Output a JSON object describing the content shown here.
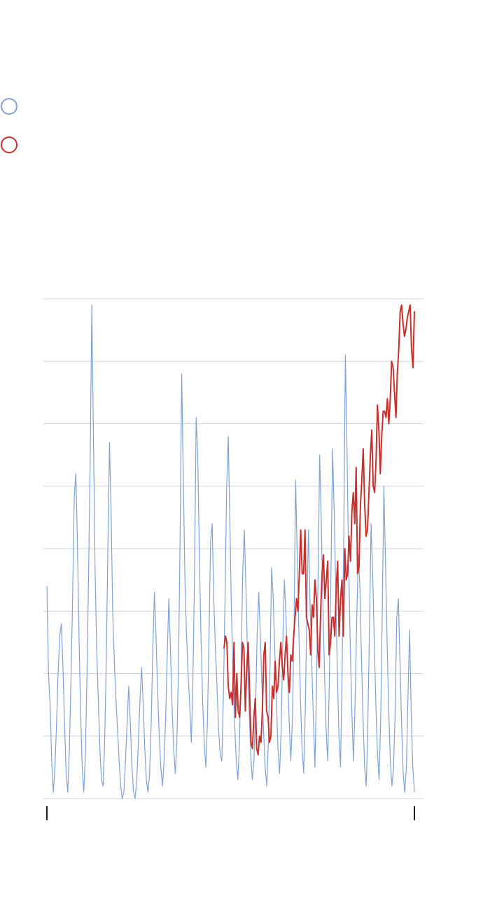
{
  "legend": [
    {
      "marker_color": "#7fa2d9",
      "shape": "circle-outline"
    },
    {
      "marker_color": "#c9302c",
      "shape": "circle-outline"
    }
  ],
  "chart_data": {
    "type": "line",
    "title": "",
    "xlabel": "",
    "ylabel": "",
    "ylim": [
      0,
      8
    ],
    "grid": "horizontal",
    "x_ticks": "endpoints-only",
    "series": [
      {
        "color": "#7fa2d9",
        "x_range": [
          0,
          1
        ],
        "values": [
          3.4,
          2.0,
          1.5,
          0.6,
          0.1,
          0.5,
          1.2,
          2.0,
          2.6,
          2.8,
          2.1,
          1.2,
          0.4,
          0.1,
          0.8,
          1.9,
          3.2,
          4.8,
          5.2,
          4.1,
          2.6,
          1.4,
          0.5,
          0.1,
          0.7,
          2.0,
          3.6,
          5.5,
          7.9,
          5.8,
          3.7,
          2.4,
          1.6,
          0.8,
          0.3,
          0.2,
          0.9,
          2.2,
          4.0,
          5.7,
          4.6,
          3.0,
          2.2,
          1.6,
          1.1,
          0.6,
          0.2,
          0.0,
          0.1,
          0.6,
          1.2,
          1.8,
          1.2,
          0.5,
          0.1,
          0.0,
          0.3,
          0.9,
          1.6,
          2.1,
          1.5,
          0.8,
          0.3,
          0.1,
          0.4,
          1.2,
          2.4,
          3.3,
          2.6,
          1.7,
          1.0,
          0.5,
          0.2,
          0.6,
          1.3,
          2.3,
          3.2,
          2.4,
          1.5,
          0.8,
          0.4,
          0.9,
          2.1,
          4.2,
          6.8,
          5.1,
          3.5,
          2.6,
          2.0,
          1.5,
          0.9,
          1.9,
          3.6,
          6.1,
          5.5,
          3.9,
          2.6,
          1.6,
          0.9,
          0.5,
          1.2,
          2.6,
          4.1,
          4.4,
          3.2,
          2.4,
          1.8,
          1.1,
          0.7,
          0.6,
          1.7,
          3.2,
          5.0,
          5.8,
          4.4,
          3.0,
          2.0,
          1.2,
          0.6,
          0.3,
          0.9,
          2.1,
          3.6,
          4.3,
          3.4,
          2.3,
          1.4,
          0.7,
          0.3,
          0.6,
          1.4,
          2.6,
          3.3,
          2.6,
          1.8,
          1.1,
          0.5,
          0.2,
          0.9,
          2.1,
          3.7,
          3.2,
          2.4,
          1.6,
          0.8,
          0.4,
          1.1,
          2.5,
          3.5,
          2.9,
          2.0,
          1.2,
          0.6,
          1.3,
          2.8,
          5.1,
          3.9,
          2.7,
          1.6,
          0.8,
          0.4,
          1.4,
          3.0,
          4.3,
          3.1,
          2.2,
          1.3,
          0.5,
          1.8,
          3.6,
          5.5,
          4.4,
          3.1,
          2.0,
          1.1,
          0.6,
          1.9,
          3.6,
          5.6,
          4.6,
          3.3,
          2.0,
          1.0,
          0.5,
          2.1,
          4.2,
          7.1,
          5.6,
          3.8,
          2.5,
          1.4,
          0.6,
          1.5,
          2.8,
          3.9,
          3.4,
          2.3,
          1.3,
          0.5,
          0.2,
          1.2,
          2.7,
          4.4,
          3.6,
          2.5,
          1.5,
          0.7,
          0.3,
          1.3,
          3.0,
          5.0,
          3.8,
          2.5,
          1.4,
          0.6,
          0.2,
          0.5,
          1.4,
          2.9,
          3.2,
          2.2,
          1.2,
          0.4,
          0.1,
          0.5,
          1.6,
          2.7,
          1.4,
          0.5,
          0.1
        ]
      },
      {
        "color": "#c9302c",
        "x_range": [
          0.482,
          1
        ],
        "values": [
          2.4,
          2.6,
          2.5,
          1.8,
          1.6,
          1.7,
          1.5,
          2.5,
          1.3,
          2.0,
          1.4,
          1.3,
          1.8,
          2.5,
          2.4,
          1.4,
          2.1,
          2.5,
          1.7,
          0.9,
          0.8,
          1.3,
          1.6,
          0.8,
          0.7,
          1.0,
          0.9,
          1.4,
          2.3,
          2.5,
          1.4,
          1.3,
          0.9,
          1.0,
          1.8,
          1.6,
          2.2,
          1.7,
          1.8,
          2.2,
          2.5,
          2.1,
          1.9,
          2.3,
          2.6,
          2.0,
          1.7,
          2.3,
          2.2,
          2.6,
          2.9,
          3.2,
          3.0,
          3.6,
          4.3,
          3.6,
          3.6,
          4.3,
          2.9,
          2.8,
          2.7,
          2.3,
          3.1,
          2.9,
          3.5,
          3.2,
          2.4,
          2.1,
          3.0,
          3.6,
          3.9,
          3.2,
          3.5,
          3.8,
          2.3,
          2.5,
          2.9,
          2.9,
          2.6,
          3.4,
          3.8,
          2.6,
          3.2,
          3.5,
          2.6,
          4.0,
          3.5,
          3.6,
          4.2,
          3.8,
          4.6,
          4.9,
          4.4,
          5.3,
          3.6,
          3.7,
          4.7,
          5.1,
          5.6,
          4.7,
          4.2,
          4.3,
          4.9,
          5.5,
          5.9,
          5.0,
          4.9,
          5.4,
          6.3,
          5.9,
          5.2,
          5.8,
          6.2,
          6.2,
          6.1,
          6.4,
          6.0,
          6.4,
          7.0,
          6.9,
          6.5,
          6.1,
          6.8,
          7.2,
          7.8,
          7.9,
          7.6,
          7.4,
          7.5,
          7.7,
          7.8,
          7.9,
          7.2,
          6.9,
          7.8
        ]
      }
    ]
  }
}
